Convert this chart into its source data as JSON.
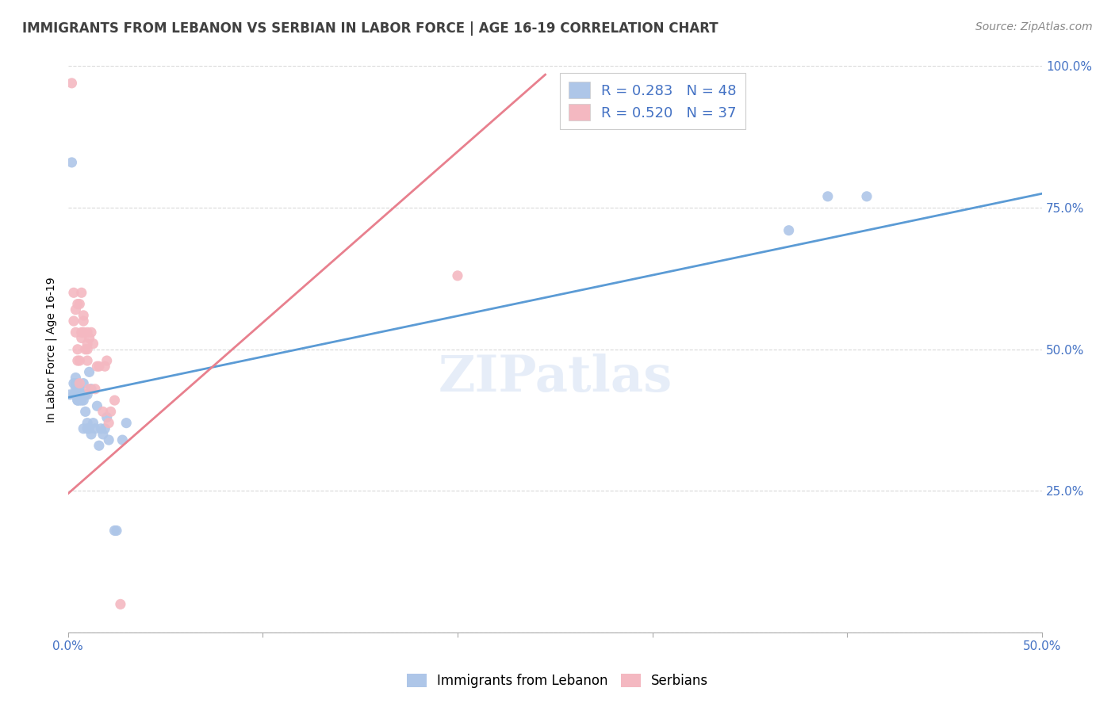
{
  "title": "IMMIGRANTS FROM LEBANON VS SERBIAN IN LABOR FORCE | AGE 16-19 CORRELATION CHART",
  "source": "Source: ZipAtlas.com",
  "ylabel": "In Labor Force | Age 16-19",
  "xlim": [
    0.0,
    0.5
  ],
  "ylim": [
    0.0,
    1.0
  ],
  "xtick_vals": [
    0.0,
    0.1,
    0.2,
    0.3,
    0.4,
    0.5
  ],
  "xtick_labels_show": [
    "0.0%",
    "",
    "",
    "",
    "",
    "50.0%"
  ],
  "ytick_vals": [
    0.0,
    0.25,
    0.5,
    0.75,
    1.0
  ],
  "ytick_labels_show": [
    "",
    "25.0%",
    "50.0%",
    "75.0%",
    "100.0%"
  ],
  "lebanon_R": 0.283,
  "lebanon_N": 48,
  "serbian_R": 0.52,
  "serbian_N": 37,
  "lebanon_color": "#aec6e8",
  "serbian_color": "#f4b8c1",
  "lebanon_line_color": "#5b9bd5",
  "serbian_line_color": "#e8808e",
  "legend_label_1": "Immigrants from Lebanon",
  "legend_label_2": "Serbians",
  "watermark": "ZIPatlas",
  "blue_line_x0": 0.0,
  "blue_line_y0": 0.415,
  "blue_line_x1": 0.5,
  "blue_line_y1": 0.775,
  "pink_line_x0": 0.0,
  "pink_line_y0": 0.245,
  "pink_line_x1": 0.245,
  "pink_line_y1": 0.985,
  "axis_color": "#4472c4",
  "grid_color": "#d9d9d9",
  "title_color": "#404040",
  "title_fontsize": 12,
  "source_fontsize": 10,
  "lebanon_x": [
    0.001,
    0.002,
    0.003,
    0.003,
    0.004,
    0.004,
    0.004,
    0.005,
    0.005,
    0.005,
    0.005,
    0.005,
    0.006,
    0.006,
    0.006,
    0.006,
    0.007,
    0.007,
    0.007,
    0.008,
    0.008,
    0.008,
    0.008,
    0.009,
    0.009,
    0.01,
    0.01,
    0.01,
    0.011,
    0.011,
    0.012,
    0.012,
    0.013,
    0.014,
    0.015,
    0.016,
    0.017,
    0.018,
    0.019,
    0.02,
    0.021,
    0.024,
    0.025,
    0.028,
    0.03,
    0.37,
    0.39,
    0.41
  ],
  "lebanon_y": [
    0.42,
    0.83,
    0.42,
    0.44,
    0.43,
    0.44,
    0.45,
    0.41,
    0.41,
    0.43,
    0.43,
    0.44,
    0.41,
    0.42,
    0.42,
    0.43,
    0.41,
    0.42,
    0.42,
    0.36,
    0.41,
    0.42,
    0.44,
    0.39,
    0.42,
    0.36,
    0.37,
    0.42,
    0.36,
    0.46,
    0.35,
    0.43,
    0.37,
    0.36,
    0.4,
    0.33,
    0.36,
    0.35,
    0.36,
    0.38,
    0.34,
    0.18,
    0.18,
    0.34,
    0.37,
    0.71,
    0.77,
    0.77
  ],
  "serbian_x": [
    0.002,
    0.003,
    0.003,
    0.004,
    0.004,
    0.005,
    0.005,
    0.005,
    0.006,
    0.006,
    0.006,
    0.007,
    0.007,
    0.007,
    0.008,
    0.008,
    0.008,
    0.009,
    0.01,
    0.01,
    0.01,
    0.01,
    0.011,
    0.011,
    0.012,
    0.013,
    0.014,
    0.015,
    0.016,
    0.018,
    0.019,
    0.02,
    0.021,
    0.022,
    0.024,
    0.027,
    0.2
  ],
  "serbian_y": [
    0.97,
    0.55,
    0.6,
    0.53,
    0.57,
    0.48,
    0.5,
    0.58,
    0.44,
    0.48,
    0.58,
    0.52,
    0.53,
    0.6,
    0.53,
    0.55,
    0.56,
    0.5,
    0.48,
    0.5,
    0.51,
    0.53,
    0.43,
    0.52,
    0.53,
    0.51,
    0.43,
    0.47,
    0.47,
    0.39,
    0.47,
    0.48,
    0.37,
    0.39,
    0.41,
    0.05,
    0.63
  ]
}
